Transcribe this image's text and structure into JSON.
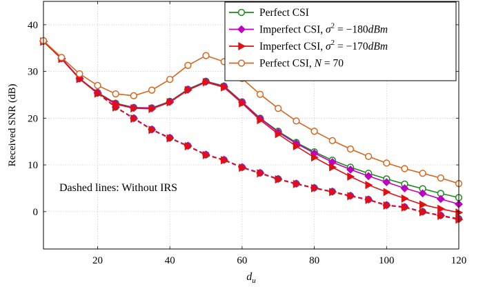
{
  "chart_data": {
    "type": "line",
    "xlabel_main": "d",
    "xlabel_sub": "u",
    "ylabel": "Received SNR (dB)",
    "xlim": [
      5,
      120
    ],
    "ylim": [
      -8,
      45
    ],
    "xticks": [
      20,
      40,
      60,
      80,
      100,
      120
    ],
    "yticks": [
      0,
      10,
      20,
      30,
      40
    ],
    "grid": true,
    "legend_position": "top-right",
    "annotation": "Dashed lines: Without IRS",
    "x": [
      5,
      10,
      15,
      20,
      25,
      30,
      35,
      40,
      45,
      50,
      55,
      60,
      65,
      70,
      75,
      80,
      85,
      90,
      95,
      100,
      105,
      110,
      115,
      120
    ],
    "series": [
      {
        "name": "Perfect CSI",
        "color": "#1a8a1a",
        "marker": "circle",
        "dashed": false,
        "values": [
          36.5,
          32.8,
          28.5,
          25.5,
          23.2,
          22.3,
          22.2,
          23.6,
          26.2,
          27.9,
          26.9,
          23.5,
          20.0,
          17.2,
          14.8,
          12.8,
          11.0,
          9.5,
          8.2,
          7.0,
          5.9,
          4.9,
          3.9,
          3.0
        ]
      },
      {
        "name": "Imperfect CSI, σ² = −180dBm",
        "label_plain": "Imperfect CSI, ",
        "label_math": "σ",
        "label_exp": "2",
        "label_rest": " = −180",
        "label_unit": "dBm",
        "color": "#c000c0",
        "marker": "diamond",
        "dashed": false,
        "values": [
          36.5,
          32.8,
          28.5,
          25.4,
          23.1,
          22.2,
          22.1,
          23.5,
          26.1,
          27.8,
          26.8,
          23.4,
          19.9,
          17.0,
          14.6,
          12.5,
          10.6,
          9.0,
          7.6,
          6.3,
          5.0,
          3.9,
          2.7,
          1.6
        ]
      },
      {
        "name": "Imperfect CSI, σ² = −170dBm",
        "label_plain": "Imperfect CSI, ",
        "label_math": "σ",
        "label_exp": "2",
        "label_rest": " = −170",
        "label_unit": "dBm",
        "color": "#e01010",
        "marker": "triangle-right",
        "dashed": false,
        "values": [
          36.4,
          32.7,
          28.4,
          25.3,
          23.0,
          22.1,
          22.0,
          23.4,
          26.0,
          27.7,
          26.6,
          23.2,
          19.6,
          16.6,
          14.0,
          11.6,
          9.5,
          7.5,
          5.7,
          4.2,
          2.8,
          1.5,
          0.6,
          -0.2
        ]
      },
      {
        "name": "Perfect CSI, N = 70",
        "label_plain": "Perfect CSI, ",
        "label_math": "N",
        "label_rest": " = 70",
        "color": "#d9651e",
        "marker": "circle",
        "dashed": false,
        "values": [
          36.6,
          33.0,
          29.5,
          27.0,
          25.2,
          24.8,
          26.0,
          28.3,
          31.3,
          33.4,
          32.1,
          28.5,
          25.1,
          22.1,
          19.4,
          17.2,
          15.2,
          13.4,
          11.8,
          10.4,
          9.2,
          8.2,
          7.2,
          6.0
        ]
      },
      {
        "name": "Without IRS (Perfect CSI)",
        "color": "#1a8a1a",
        "marker": "circle",
        "dashed": true,
        "values": [
          36.5,
          32.8,
          28.5,
          25.4,
          22.4,
          20.0,
          17.6,
          15.8,
          14.1,
          12.2,
          11.1,
          9.5,
          8.3,
          7.0,
          6.0,
          5.1,
          4.3,
          3.4,
          2.6,
          1.4,
          1.0,
          0.0,
          -0.8,
          -1.5
        ]
      },
      {
        "name": "Without IRS (σ² = −180dBm)",
        "color": "#c000c0",
        "marker": "diamond",
        "dashed": true,
        "values": [
          36.5,
          32.8,
          28.5,
          25.4,
          22.4,
          20.0,
          17.6,
          15.8,
          14.1,
          12.2,
          11.1,
          9.5,
          8.3,
          7.0,
          6.0,
          5.1,
          4.3,
          3.4,
          2.6,
          1.4,
          1.0,
          0.0,
          -0.8,
          -1.6
        ]
      },
      {
        "name": "Without IRS (σ² = −170dBm)",
        "color": "#e01010",
        "marker": "triangle-right",
        "dashed": true,
        "values": [
          36.4,
          32.7,
          28.4,
          25.3,
          22.3,
          19.9,
          17.5,
          15.7,
          14.0,
          12.1,
          11.0,
          9.4,
          8.2,
          6.9,
          5.9,
          5.0,
          4.2,
          3.3,
          2.5,
          1.3,
          0.9,
          -0.1,
          -0.9,
          -1.7
        ]
      }
    ],
    "legend_entries": [
      0,
      1,
      2,
      3
    ]
  }
}
